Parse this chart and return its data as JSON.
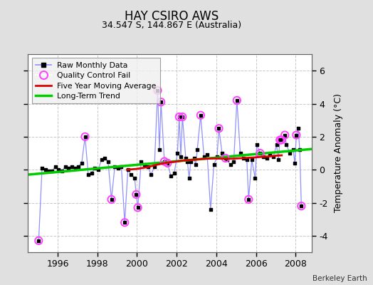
{
  "title": "HAY CSIRO AWS",
  "subtitle": "34.547 S, 144.867 E (Australia)",
  "ylabel": "Temperature Anomaly (°C)",
  "attribution": "Berkeley Earth",
  "xlim": [
    1994.5,
    2008.8
  ],
  "ylim": [
    -5.0,
    7.0
  ],
  "yticks": [
    -4,
    -2,
    0,
    2,
    4,
    6
  ],
  "xticks": [
    1996,
    1998,
    2000,
    2002,
    2004,
    2006,
    2008
  ],
  "bg_color": "#e0e0e0",
  "plot_bg_color": "#ffffff",
  "grid_color": "#c8c8c8",
  "raw_line_color": "#9090ff",
  "raw_marker_color": "#000000",
  "qc_fail_color": "#ff40ff",
  "moving_avg_color": "#dd0000",
  "trend_color": "#00cc00",
  "raw_data": [
    [
      1995.04,
      -4.3
    ],
    [
      1995.21,
      0.1
    ],
    [
      1995.38,
      0.0
    ],
    [
      1995.54,
      -0.1
    ],
    [
      1995.71,
      -0.1
    ],
    [
      1995.88,
      0.2
    ],
    [
      1996.04,
      0.0
    ],
    [
      1996.21,
      -0.1
    ],
    [
      1996.38,
      0.2
    ],
    [
      1996.54,
      0.1
    ],
    [
      1996.71,
      0.2
    ],
    [
      1996.88,
      0.1
    ],
    [
      1997.04,
      0.2
    ],
    [
      1997.21,
      0.4
    ],
    [
      1997.38,
      2.0
    ],
    [
      1997.54,
      -0.3
    ],
    [
      1997.71,
      -0.2
    ],
    [
      1997.88,
      0.1
    ],
    [
      1998.04,
      0.0
    ],
    [
      1998.21,
      0.6
    ],
    [
      1998.38,
      0.7
    ],
    [
      1998.54,
      0.5
    ],
    [
      1998.71,
      -1.8
    ],
    [
      1998.88,
      0.2
    ],
    [
      1999.04,
      0.1
    ],
    [
      1999.21,
      0.2
    ],
    [
      1999.38,
      -3.2
    ],
    [
      1999.54,
      0.0
    ],
    [
      1999.71,
      -0.3
    ],
    [
      1999.88,
      -0.5
    ],
    [
      1999.96,
      -1.5
    ],
    [
      2000.04,
      -2.3
    ],
    [
      2000.21,
      0.5
    ],
    [
      2000.38,
      0.3
    ],
    [
      2000.54,
      0.2
    ],
    [
      2000.71,
      -0.3
    ],
    [
      2000.88,
      0.2
    ],
    [
      2001.04,
      4.8
    ],
    [
      2001.13,
      1.2
    ],
    [
      2001.21,
      4.1
    ],
    [
      2001.38,
      0.5
    ],
    [
      2001.54,
      0.4
    ],
    [
      2001.71,
      -0.4
    ],
    [
      2001.88,
      -0.2
    ],
    [
      2002.04,
      1.0
    ],
    [
      2002.13,
      3.2
    ],
    [
      2002.21,
      0.8
    ],
    [
      2002.29,
      3.2
    ],
    [
      2002.46,
      0.7
    ],
    [
      2002.54,
      0.5
    ],
    [
      2002.63,
      -0.5
    ],
    [
      2002.71,
      0.5
    ],
    [
      2002.88,
      0.7
    ],
    [
      2002.96,
      0.3
    ],
    [
      2003.04,
      1.2
    ],
    [
      2003.21,
      3.3
    ],
    [
      2003.38,
      0.8
    ],
    [
      2003.54,
      0.9
    ],
    [
      2003.71,
      -2.4
    ],
    [
      2003.88,
      0.3
    ],
    [
      2004.04,
      0.8
    ],
    [
      2004.13,
      2.5
    ],
    [
      2004.29,
      1.0
    ],
    [
      2004.46,
      0.7
    ],
    [
      2004.54,
      0.6
    ],
    [
      2004.71,
      0.3
    ],
    [
      2004.88,
      0.5
    ],
    [
      2005.04,
      4.2
    ],
    [
      2005.21,
      1.0
    ],
    [
      2005.38,
      0.7
    ],
    [
      2005.54,
      0.6
    ],
    [
      2005.63,
      -1.8
    ],
    [
      2005.79,
      0.6
    ],
    [
      2005.96,
      -0.5
    ],
    [
      2006.04,
      1.5
    ],
    [
      2006.21,
      1.0
    ],
    [
      2006.38,
      0.8
    ],
    [
      2006.54,
      0.7
    ],
    [
      2006.71,
      0.9
    ],
    [
      2006.88,
      0.8
    ],
    [
      2007.04,
      1.5
    ],
    [
      2007.13,
      0.6
    ],
    [
      2007.21,
      1.8
    ],
    [
      2007.29,
      1.8
    ],
    [
      2007.46,
      2.1
    ],
    [
      2007.54,
      1.5
    ],
    [
      2007.71,
      1.0
    ],
    [
      2007.88,
      1.2
    ],
    [
      2007.96,
      0.4
    ],
    [
      2008.04,
      2.1
    ],
    [
      2008.13,
      2.5
    ],
    [
      2008.21,
      1.2
    ],
    [
      2008.29,
      -2.2
    ]
  ],
  "qc_fail_points": [
    [
      1995.04,
      -4.3
    ],
    [
      1997.38,
      2.0
    ],
    [
      1998.71,
      -1.8
    ],
    [
      1999.38,
      -3.2
    ],
    [
      1999.96,
      -1.5
    ],
    [
      2000.04,
      -2.3
    ],
    [
      2001.04,
      4.8
    ],
    [
      2001.21,
      4.1
    ],
    [
      2001.38,
      0.5
    ],
    [
      2001.54,
      0.4
    ],
    [
      2002.13,
      3.2
    ],
    [
      2002.29,
      3.2
    ],
    [
      2003.21,
      3.3
    ],
    [
      2004.13,
      2.5
    ],
    [
      2004.46,
      0.7
    ],
    [
      2005.04,
      4.2
    ],
    [
      2005.63,
      -1.8
    ],
    [
      2006.21,
      1.0
    ],
    [
      2007.21,
      1.8
    ],
    [
      2007.29,
      1.8
    ],
    [
      2007.46,
      2.1
    ],
    [
      2008.04,
      2.1
    ],
    [
      2008.29,
      -2.2
    ]
  ],
  "trend_x": [
    1994.5,
    2008.8
  ],
  "trend_y": [
    -0.3,
    1.25
  ],
  "moving_avg": [
    [
      1999.5,
      0.0
    ],
    [
      2000.0,
      0.05
    ],
    [
      2000.5,
      0.15
    ],
    [
      2001.0,
      0.3
    ],
    [
      2001.3,
      0.38
    ],
    [
      2001.6,
      0.44
    ],
    [
      2001.9,
      0.48
    ],
    [
      2002.0,
      0.5
    ],
    [
      2002.3,
      0.55
    ],
    [
      2002.6,
      0.58
    ],
    [
      2002.9,
      0.6
    ],
    [
      2003.0,
      0.62
    ],
    [
      2003.3,
      0.65
    ],
    [
      2003.6,
      0.67
    ],
    [
      2003.9,
      0.68
    ],
    [
      2004.0,
      0.68
    ],
    [
      2004.3,
      0.67
    ],
    [
      2004.6,
      0.66
    ],
    [
      2004.9,
      0.67
    ],
    [
      2005.0,
      0.68
    ],
    [
      2005.3,
      0.7
    ],
    [
      2005.6,
      0.72
    ],
    [
      2005.9,
      0.74
    ],
    [
      2006.0,
      0.75
    ],
    [
      2006.3,
      0.78
    ],
    [
      2006.6,
      0.8
    ],
    [
      2006.9,
      0.83
    ],
    [
      2007.0,
      0.85
    ],
    [
      2007.3,
      0.87
    ]
  ]
}
